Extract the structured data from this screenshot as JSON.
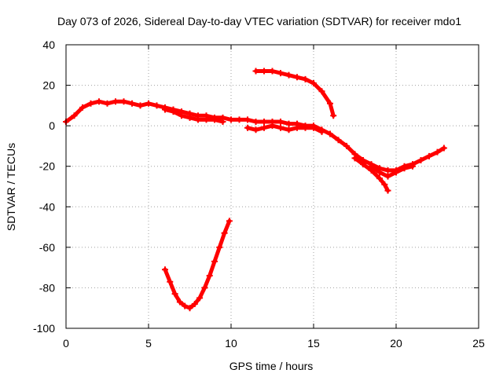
{
  "chart_data": {
    "type": "scatter",
    "title": "Day 073 of 2026, Sidereal Day-to-day VTEC variation (SDTVAR) for receiver mdo1",
    "xlabel": "GPS time / hours",
    "ylabel": "SDTVAR / TECUs",
    "xlim": [
      0,
      25
    ],
    "ylim": [
      -100,
      40
    ],
    "xticks": [
      0,
      5,
      10,
      15,
      20,
      25
    ],
    "yticks": [
      -100,
      -80,
      -60,
      -40,
      -20,
      0,
      20,
      40
    ],
    "grid": true,
    "legend": "none",
    "series_color": "#ff0000",
    "series": [
      {
        "name": "main-trace",
        "points": [
          [
            0.0,
            2
          ],
          [
            0.5,
            5
          ],
          [
            1.0,
            9
          ],
          [
            1.5,
            11
          ],
          [
            2.0,
            12
          ],
          [
            2.5,
            11
          ],
          [
            3.0,
            12
          ],
          [
            3.5,
            12
          ],
          [
            4.0,
            11
          ],
          [
            4.5,
            10
          ],
          [
            5.0,
            11
          ],
          [
            5.5,
            10
          ],
          [
            6.0,
            9
          ],
          [
            6.5,
            8
          ],
          [
            7.0,
            7
          ],
          [
            7.5,
            6
          ],
          [
            8.0,
            5
          ],
          [
            8.5,
            5
          ],
          [
            9.0,
            4
          ],
          [
            9.5,
            4
          ],
          [
            10.0,
            3
          ],
          [
            10.5,
            3
          ],
          [
            11.0,
            3
          ],
          [
            11.5,
            2
          ],
          [
            12.0,
            2
          ],
          [
            12.5,
            2
          ],
          [
            13.0,
            2
          ],
          [
            13.5,
            1
          ],
          [
            14.0,
            1
          ],
          [
            14.5,
            0
          ],
          [
            15.0,
            0
          ],
          [
            15.5,
            -2
          ],
          [
            16.0,
            -4
          ],
          [
            16.5,
            -7
          ],
          [
            17.0,
            -10
          ],
          [
            17.5,
            -14
          ],
          [
            18.0,
            -17
          ],
          [
            18.5,
            -19
          ],
          [
            19.0,
            -21
          ],
          [
            19.5,
            -22
          ],
          [
            20.0,
            -22
          ],
          [
            20.5,
            -20
          ],
          [
            21.0,
            -19
          ],
          [
            21.5,
            -17
          ],
          [
            22.0,
            -15
          ],
          [
            22.5,
            -13
          ],
          [
            22.9,
            -11
          ]
        ]
      },
      {
        "name": "early-thick-band",
        "points": [
          [
            6.0,
            8
          ],
          [
            6.5,
            7
          ],
          [
            7.0,
            5
          ],
          [
            7.5,
            4
          ],
          [
            8.0,
            3
          ],
          [
            8.5,
            3
          ],
          [
            9.0,
            3
          ],
          [
            9.5,
            2
          ]
        ]
      },
      {
        "name": "mid-dips",
        "points": [
          [
            11.0,
            -1
          ],
          [
            11.5,
            -2
          ],
          [
            12.0,
            -1
          ],
          [
            12.5,
            0
          ],
          [
            13.0,
            -1
          ],
          [
            13.5,
            -2
          ],
          [
            14.0,
            -1
          ],
          [
            14.5,
            -1
          ],
          [
            15.0,
            -1
          ],
          [
            15.5,
            -3
          ]
        ]
      },
      {
        "name": "lower-branch",
        "points": [
          [
            17.5,
            -16
          ],
          [
            18.0,
            -19
          ],
          [
            18.5,
            -22
          ],
          [
            19.0,
            -26
          ],
          [
            19.3,
            -29
          ],
          [
            19.5,
            -32
          ]
        ]
      },
      {
        "name": "lower-branch-2",
        "points": [
          [
            18.5,
            -20
          ],
          [
            19.0,
            -23
          ],
          [
            19.5,
            -25
          ],
          [
            20.0,
            -23
          ],
          [
            20.5,
            -21
          ],
          [
            21.0,
            -20
          ]
        ]
      },
      {
        "name": "upper-arc",
        "points": [
          [
            11.5,
            27
          ],
          [
            12.0,
            27
          ],
          [
            12.5,
            27
          ],
          [
            13.0,
            26
          ],
          [
            13.5,
            25
          ],
          [
            14.0,
            24
          ],
          [
            14.5,
            23
          ],
          [
            15.0,
            21
          ],
          [
            15.5,
            17
          ],
          [
            16.0,
            11
          ],
          [
            16.2,
            5
          ]
        ]
      },
      {
        "name": "lower-arc",
        "points": [
          [
            6.0,
            -71
          ],
          [
            6.3,
            -77
          ],
          [
            6.6,
            -83
          ],
          [
            6.9,
            -87
          ],
          [
            7.2,
            -89
          ],
          [
            7.5,
            -90
          ],
          [
            7.8,
            -88
          ],
          [
            8.1,
            -85
          ],
          [
            8.4,
            -80
          ],
          [
            8.7,
            -74
          ],
          [
            9.0,
            -67
          ],
          [
            9.3,
            -60
          ],
          [
            9.6,
            -53
          ],
          [
            9.9,
            -47
          ]
        ]
      }
    ]
  }
}
